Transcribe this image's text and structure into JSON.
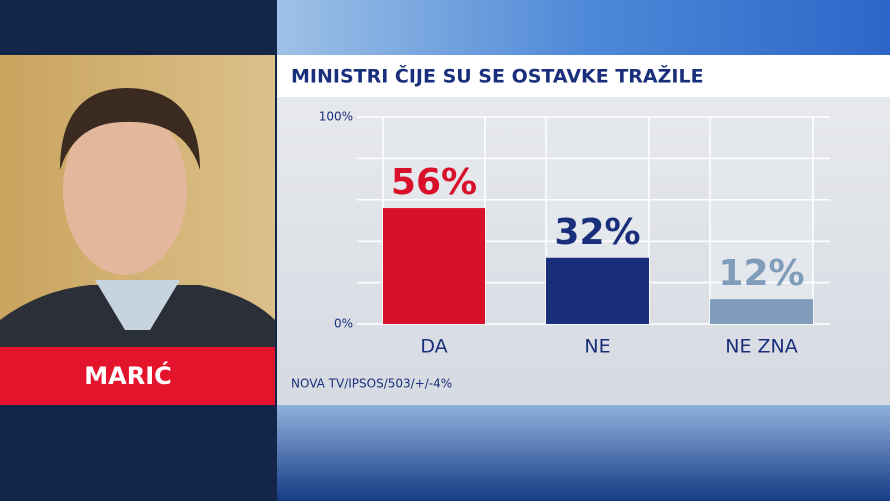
{
  "name_label": "MARIĆ",
  "chart_data": {
    "type": "bar",
    "title": "MINISTRI ČIJE SU SE OSTAVKE TRAŽILE",
    "categories": [
      "DA",
      "NE",
      "NE ZNA"
    ],
    "values": [
      56,
      32,
      12
    ],
    "value_labels": [
      "56%",
      "32%",
      "12%"
    ],
    "colors": [
      "#d8102a",
      "#1a2f7c",
      "#7f9dba"
    ],
    "ylim": [
      0,
      100
    ],
    "yticks": [
      {
        "value": 0,
        "label": "0%"
      },
      {
        "value": 100,
        "label": "100%"
      }
    ],
    "gridlines": [
      0,
      20,
      40,
      60,
      80,
      100
    ],
    "source": "NOVA TV/IPSOS/503/+/-4%"
  }
}
